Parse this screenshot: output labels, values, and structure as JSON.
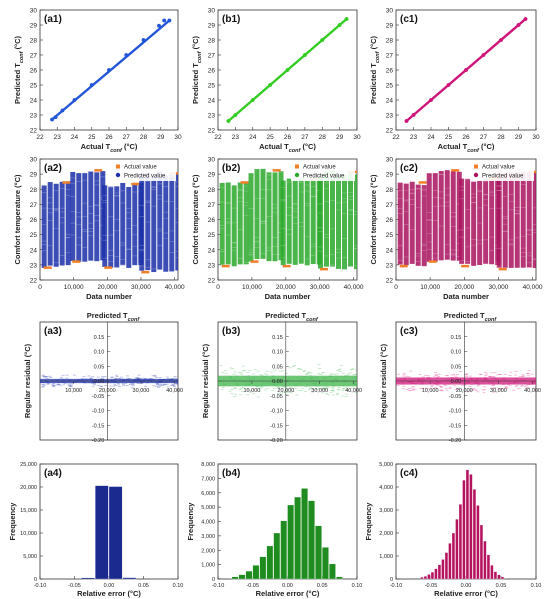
{
  "chart_data": [
    {
      "id": "a1",
      "type": "scatter",
      "panel_label": "(a1)",
      "xlabel": "Actual T",
      "xlabel_sub": "conf",
      "xlabel_unit": " (°C)",
      "ylabel": "Predicted T",
      "ylabel_sub": "conf",
      "ylabel_unit": " (°C)",
      "xlim": [
        22,
        30
      ],
      "ylim": [
        22,
        30
      ],
      "xticks": [
        "22",
        "23",
        "24",
        "25",
        "26",
        "27",
        "28",
        "29",
        "30"
      ],
      "yticks": [
        "22",
        "23",
        "24",
        "25",
        "26",
        "27",
        "28",
        "29",
        "30"
      ],
      "color": "#2255d8",
      "points": [
        [
          22.7,
          22.7
        ],
        [
          22.9,
          22.85
        ],
        [
          23.3,
          23.3
        ],
        [
          24.0,
          24.0
        ],
        [
          25.0,
          25.0
        ],
        [
          26.0,
          26.0
        ],
        [
          27.0,
          27.0
        ],
        [
          28.0,
          28.0
        ],
        [
          28.9,
          28.95
        ],
        [
          29.2,
          29.3
        ],
        [
          29.5,
          29.3
        ]
      ]
    },
    {
      "id": "b1",
      "type": "scatter",
      "panel_label": "(b1)",
      "xlabel": "Actual T",
      "xlabel_sub": "conf",
      "xlabel_unit": " (°C)",
      "ylabel": "Predicted T",
      "ylabel_sub": "conf",
      "ylabel_unit": " (°C)",
      "xlim": [
        22,
        30
      ],
      "ylim": [
        22,
        30
      ],
      "xticks": [
        "22",
        "23",
        "24",
        "25",
        "26",
        "27",
        "28",
        "29",
        "30"
      ],
      "yticks": [
        "22",
        "23",
        "24",
        "25",
        "26",
        "27",
        "28",
        "29",
        "30"
      ],
      "color": "#33cc22",
      "points": [
        [
          22.6,
          22.6
        ],
        [
          23.0,
          23.0
        ],
        [
          24.0,
          24.0
        ],
        [
          25.0,
          25.0
        ],
        [
          26.0,
          26.0
        ],
        [
          27.0,
          27.0
        ],
        [
          28.0,
          28.0
        ],
        [
          29.0,
          29.0
        ],
        [
          29.4,
          29.4
        ]
      ]
    },
    {
      "id": "c1",
      "type": "scatter",
      "panel_label": "(c1)",
      "xlabel": "Actual T",
      "xlabel_sub": "conf",
      "xlabel_unit": " (°C)",
      "ylabel": "Predicted T",
      "ylabel_sub": "conf",
      "ylabel_unit": " (°C)",
      "xlim": [
        22,
        30
      ],
      "ylim": [
        22,
        30
      ],
      "xticks": [
        "22",
        "23",
        "24",
        "25",
        "26",
        "27",
        "28",
        "29",
        "30"
      ],
      "yticks": [
        "22",
        "23",
        "24",
        "25",
        "26",
        "27",
        "28",
        "29",
        "30"
      ],
      "color": "#d0157a",
      "points": [
        [
          22.6,
          22.6
        ],
        [
          23.0,
          23.0
        ],
        [
          24.0,
          24.0
        ],
        [
          25.0,
          25.0
        ],
        [
          26.0,
          26.0
        ],
        [
          27.0,
          27.0
        ],
        [
          28.0,
          28.0
        ],
        [
          29.0,
          29.0
        ],
        [
          29.4,
          29.4
        ]
      ]
    },
    {
      "id": "a2",
      "type": "scatter",
      "panel_label": "(a2)",
      "xlabel": "Data number",
      "ylabel": "Comfort temperature (°C)",
      "xlim": [
        0,
        41000
      ],
      "ylim": [
        22,
        30
      ],
      "xticks": [
        "0",
        "10,000",
        "20,000",
        "30,000",
        "40,000"
      ],
      "yticks": [
        "22",
        "23",
        "24",
        "25",
        "26",
        "27",
        "28",
        "29",
        "30"
      ],
      "legend": [
        "Actual value",
        "Predicted value"
      ],
      "legend_position": "top-right",
      "colors": {
        "actual": "#f07f2a",
        "predicted": "#1a2fa8"
      },
      "segments": [
        {
          "x": [
            500,
            9000
          ],
          "low": 22.9,
          "high": 28.4
        },
        {
          "x": [
            9000,
            18500
          ],
          "low": 23.3,
          "high": 29.2
        },
        {
          "x": [
            18500,
            29500
          ],
          "low": 22.9,
          "high": 28.3
        },
        {
          "x": [
            29500,
            41000
          ],
          "low": 22.6,
          "high": 29.0
        }
      ]
    },
    {
      "id": "b2",
      "type": "scatter",
      "panel_label": "(b2)",
      "xlabel": "Data number",
      "ylabel": "Comfort temperature (°C)",
      "xlim": [
        0,
        41000
      ],
      "ylim": [
        22,
        30
      ],
      "xticks": [
        "0",
        "10,000",
        "20,000",
        "30,000",
        "40,000"
      ],
      "yticks": [
        "22",
        "23",
        "24",
        "25",
        "26",
        "27",
        "28",
        "29",
        "30"
      ],
      "legend": [
        "Actual value",
        "Predicted value"
      ],
      "legend_position": "top-right",
      "colors": {
        "actual": "#f07f2a",
        "predicted": "#2aa82a"
      },
      "segments": [
        {
          "x": [
            500,
            9000
          ],
          "low": 23.0,
          "high": 28.4
        },
        {
          "x": [
            9000,
            18500
          ],
          "low": 23.3,
          "high": 29.2
        },
        {
          "x": [
            18500,
            29500
          ],
          "low": 23.0,
          "high": 28.6
        },
        {
          "x": [
            29500,
            41000
          ],
          "low": 22.8,
          "high": 29.1
        }
      ]
    },
    {
      "id": "c2",
      "type": "scatter",
      "panel_label": "(c2)",
      "xlabel": "Data number",
      "ylabel": "Comfort temperature (°C)",
      "xlim": [
        0,
        41000
      ],
      "ylim": [
        22,
        30
      ],
      "xticks": [
        "0",
        "10,000",
        "20,000",
        "30,000",
        "40,000"
      ],
      "yticks": [
        "22",
        "23",
        "24",
        "25",
        "26",
        "27",
        "28",
        "29",
        "30"
      ],
      "legend": [
        "Actual value",
        "Predicted value"
      ],
      "legend_position": "top-right",
      "colors": {
        "actual": "#f07f2a",
        "predicted": "#a8125e"
      },
      "segments": [
        {
          "x": [
            500,
            9000
          ],
          "low": 23.0,
          "high": 28.4
        },
        {
          "x": [
            9000,
            18500
          ],
          "low": 23.3,
          "high": 29.2
        },
        {
          "x": [
            18500,
            29500
          ],
          "low": 23.0,
          "high": 28.6
        },
        {
          "x": [
            29500,
            41000
          ],
          "low": 22.8,
          "high": 29.1
        }
      ]
    },
    {
      "id": "a3",
      "type": "scatter",
      "panel_label": "(a3)",
      "title": "Predicted T",
      "title_sub": "conf",
      "ylabel": "Regular residual (°C)",
      "xlim": [
        0,
        41000
      ],
      "ylim": [
        -0.2,
        0.2
      ],
      "xticks": [
        "10,000",
        "20,000",
        "30,000",
        "40,000"
      ],
      "yticks": [
        "0.15",
        "0.10",
        "0.05",
        "0.00",
        "-0.05",
        "-0.10",
        "-0.15",
        "-0.20"
      ],
      "color": "#1a2fa8",
      "spread": 0.012
    },
    {
      "id": "b3",
      "type": "scatter",
      "panel_label": "(b3)",
      "title": "Predicted T",
      "title_sub": "conf",
      "ylabel": "Regular residual (°C)",
      "xlim": [
        0,
        41000
      ],
      "ylim": [
        -0.2,
        0.2
      ],
      "xticks": [
        "10,000",
        "20,000",
        "30,000",
        "40,000"
      ],
      "yticks": [
        "0.15",
        "0.10",
        "0.05",
        "0.00",
        "-0.05",
        "-0.10",
        "-0.15",
        "-0.20"
      ],
      "color": "#3cb44a",
      "spread": 0.03
    },
    {
      "id": "c3",
      "type": "scatter",
      "panel_label": "(c3)",
      "title": "Predicted T",
      "title_sub": "conf",
      "ylabel": "Regular residual (°C)",
      "xlim": [
        0,
        41000
      ],
      "ylim": [
        -0.2,
        0.2
      ],
      "xticks": [
        "10,000",
        "20,000",
        "30,000",
        "40,000"
      ],
      "yticks": [
        "0.15",
        "0.10",
        "0.05",
        "0.00",
        "-0.05",
        "-0.10",
        "-0.15",
        "-0.20"
      ],
      "color": "#d0157a",
      "spread": 0.02
    },
    {
      "id": "a4",
      "type": "bar",
      "panel_label": "(a4)",
      "xlabel": "Relative error (°C)",
      "ylabel": "Frequency",
      "xlim": [
        -0.1,
        0.1
      ],
      "ylim": [
        0,
        25000
      ],
      "xticks": [
        "-0.10",
        "-0.05",
        "0.00",
        "0.05",
        "0.10"
      ],
      "yticks": [
        "0",
        "5,000",
        "10,000",
        "15,000",
        "20,000",
        "25,000"
      ],
      "color": "#1b2a8f",
      "bin_width": 0.02,
      "bins": [
        [
          -0.01,
          20300
        ],
        [
          0.01,
          20100
        ],
        [
          -0.03,
          250
        ],
        [
          0.03,
          300
        ]
      ]
    },
    {
      "id": "b4",
      "type": "bar",
      "panel_label": "(b4)",
      "xlabel": "Relative error (°C)",
      "ylabel": "Frequency",
      "xlim": [
        -0.1,
        0.1
      ],
      "ylim": [
        0,
        8000
      ],
      "xticks": [
        "-0.10",
        "-0.05",
        "0.00",
        "0.05",
        "0.10"
      ],
      "yticks": [
        "0",
        "1,000",
        "2,000",
        "3,000",
        "4,000",
        "5,000",
        "6,000",
        "7,000",
        "8,000"
      ],
      "color": "#1f8c1f",
      "bin_width": 0.01,
      "bins": [
        [
          -0.075,
          150
        ],
        [
          -0.065,
          300
        ],
        [
          -0.055,
          550
        ],
        [
          -0.045,
          950
        ],
        [
          -0.035,
          1550
        ],
        [
          -0.025,
          2300
        ],
        [
          -0.015,
          3200
        ],
        [
          -0.005,
          4050
        ],
        [
          0.005,
          5150
        ],
        [
          0.015,
          5700
        ],
        [
          0.025,
          6300
        ],
        [
          0.035,
          5450
        ],
        [
          0.045,
          3700
        ],
        [
          0.055,
          2200
        ],
        [
          0.065,
          1050
        ],
        [
          0.075,
          150
        ]
      ]
    },
    {
      "id": "c4",
      "type": "bar",
      "panel_label": "(c4)",
      "xlabel": "Relative error (°C)",
      "ylabel": "Frequency",
      "xlim": [
        -0.1,
        0.1
      ],
      "ylim": [
        0,
        5000
      ],
      "xticks": [
        "-0.10",
        "-0.05",
        "0.00",
        "0.05",
        "0.10"
      ],
      "yticks": [
        "0",
        "1,000",
        "2,000",
        "3,000",
        "4,000",
        "5,000"
      ],
      "color": "#b5125f",
      "bin_width": 0.005,
      "bins": [
        [
          -0.0625,
          80
        ],
        [
          -0.0575,
          120
        ],
        [
          -0.0525,
          200
        ],
        [
          -0.0475,
          300
        ],
        [
          -0.0425,
          450
        ],
        [
          -0.0375,
          620
        ],
        [
          -0.0325,
          850
        ],
        [
          -0.0275,
          1150
        ],
        [
          -0.0225,
          1550
        ],
        [
          -0.0175,
          2000
        ],
        [
          -0.0125,
          2600
        ],
        [
          -0.0075,
          3250
        ],
        [
          -0.0025,
          4300
        ],
        [
          0.0025,
          4750
        ],
        [
          0.0075,
          4550
        ],
        [
          0.0125,
          3900
        ],
        [
          0.0175,
          3200
        ],
        [
          0.0225,
          2350
        ],
        [
          0.0275,
          1650
        ],
        [
          0.0325,
          1050
        ],
        [
          0.0375,
          600
        ],
        [
          0.0425,
          320
        ],
        [
          0.0475,
          180
        ],
        [
          0.0525,
          90
        ]
      ]
    }
  ]
}
